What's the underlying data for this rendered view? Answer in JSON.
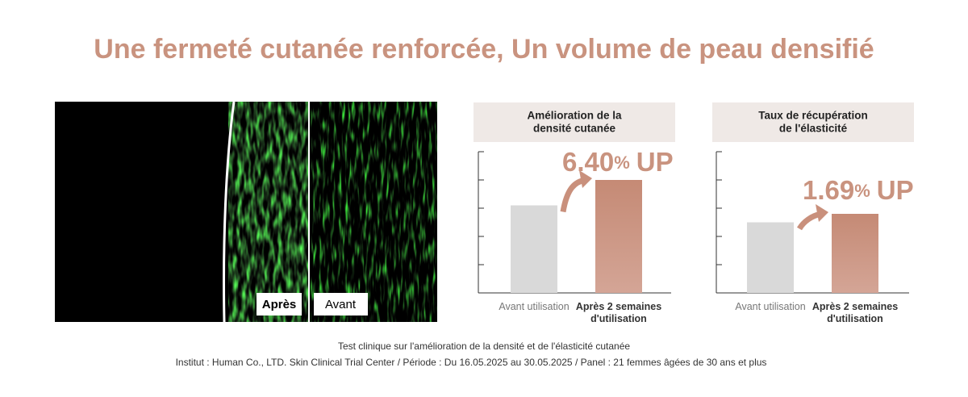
{
  "title": "Une fermeté cutanée renforcée, Un volume de peau densifié",
  "image": {
    "labels": [
      "Après",
      "Avant"
    ]
  },
  "chart_data": [
    {
      "type": "bar",
      "title": [
        "Amélioration de la",
        "densité cutanée"
      ],
      "categories": [
        "Avant utilisation",
        "Après 2 semaines d'utilisation"
      ],
      "values": [
        3.1,
        4.0
      ],
      "colors": [
        "#d9d9d9",
        "#c9907c"
      ],
      "ylim": [
        0,
        5
      ],
      "yticks": [
        0,
        1,
        2,
        3,
        4,
        5
      ],
      "annotation": {
        "value": "6.40",
        "unit": "%",
        "suffix": "UP"
      }
    },
    {
      "type": "bar",
      "title": [
        "Taux de récupération",
        "de l'élasticité"
      ],
      "categories": [
        "Avant utilisation",
        "Après 2 semaines d'utilisation"
      ],
      "values": [
        2.5,
        2.8
      ],
      "colors": [
        "#d9d9d9",
        "#c9907c"
      ],
      "ylim": [
        0,
        5
      ],
      "yticks": [
        0,
        1,
        2,
        3,
        4,
        5
      ],
      "annotation": {
        "value": "1.69",
        "unit": "%",
        "suffix": "UP"
      }
    }
  ],
  "footnote": [
    "Test clinique sur l'amélioration de la densité et de l'élasticité cutanée",
    "Institut : Human Co., LTD. Skin Clinical Trial Center / Période : Du 16.05.2025 au 30.05.2025 / Panel : 21 femmes âgées de 30 ans et plus"
  ]
}
